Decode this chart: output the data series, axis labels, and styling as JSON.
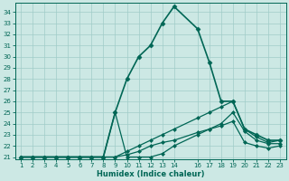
{
  "title": "",
  "xlabel": "Humidex (Indice chaleur)",
  "ylabel": "",
  "bg_color": "#cce8e4",
  "grid_color": "#a0ccc8",
  "line_color": "#006655",
  "xlim": [
    0.5,
    23.5
  ],
  "ylim": [
    20.8,
    34.8
  ],
  "xticks": [
    1,
    2,
    3,
    4,
    5,
    6,
    7,
    8,
    9,
    10,
    11,
    12,
    13,
    14,
    16,
    17,
    18,
    19,
    20,
    21,
    22,
    23
  ],
  "yticks": [
    21,
    22,
    23,
    24,
    25,
    26,
    27,
    28,
    29,
    30,
    31,
    32,
    33,
    34
  ],
  "lines": [
    {
      "x": [
        1,
        2,
        3,
        4,
        5,
        6,
        7,
        8,
        9,
        10,
        11,
        12,
        13,
        14,
        16,
        17,
        18,
        19,
        20,
        21,
        22,
        23
      ],
      "y": [
        21,
        21,
        21,
        21,
        21,
        21,
        21,
        21,
        25.0,
        28.0,
        30.0,
        31.0,
        33.0,
        34.5,
        32.5,
        29.5,
        26.0,
        26.0,
        23.5,
        23.0,
        22.5,
        22.5
      ],
      "marker": "D",
      "markersize": 2.5,
      "lw": 1.2
    },
    {
      "x": [
        1,
        2,
        3,
        4,
        5,
        6,
        7,
        8,
        9,
        10,
        11,
        12,
        13,
        14,
        16,
        17,
        18,
        19,
        20,
        21,
        22,
        23
      ],
      "y": [
        21,
        21,
        21,
        21,
        21,
        21,
        21,
        21,
        25.0,
        21.0,
        21.0,
        21.0,
        21.3,
        22.0,
        23.0,
        23.5,
        24.0,
        25.0,
        23.3,
        22.5,
        22.2,
        22.2
      ],
      "marker": "D",
      "markersize": 2.0,
      "lw": 0.9
    },
    {
      "x": [
        1,
        2,
        3,
        4,
        5,
        6,
        7,
        8,
        9,
        10,
        11,
        12,
        13,
        14,
        16,
        17,
        18,
        19,
        20,
        21,
        22,
        23
      ],
      "y": [
        21,
        21,
        21,
        21,
        21,
        21,
        21,
        21,
        21,
        21.5,
        22.0,
        22.5,
        23.0,
        23.5,
        24.5,
        25.0,
        25.5,
        26.0,
        23.5,
        22.8,
        22.3,
        22.5
      ],
      "marker": "D",
      "markersize": 2.0,
      "lw": 0.9
    },
    {
      "x": [
        1,
        2,
        3,
        4,
        5,
        6,
        7,
        8,
        9,
        10,
        11,
        12,
        13,
        14,
        16,
        17,
        18,
        19,
        20,
        21,
        22,
        23
      ],
      "y": [
        21,
        21,
        21,
        21,
        21,
        21,
        21,
        21,
        21,
        21.2,
        21.5,
        22.0,
        22.3,
        22.5,
        23.2,
        23.5,
        23.8,
        24.2,
        22.3,
        22.0,
        21.8,
        22.0
      ],
      "marker": "D",
      "markersize": 2.0,
      "lw": 0.9
    }
  ]
}
